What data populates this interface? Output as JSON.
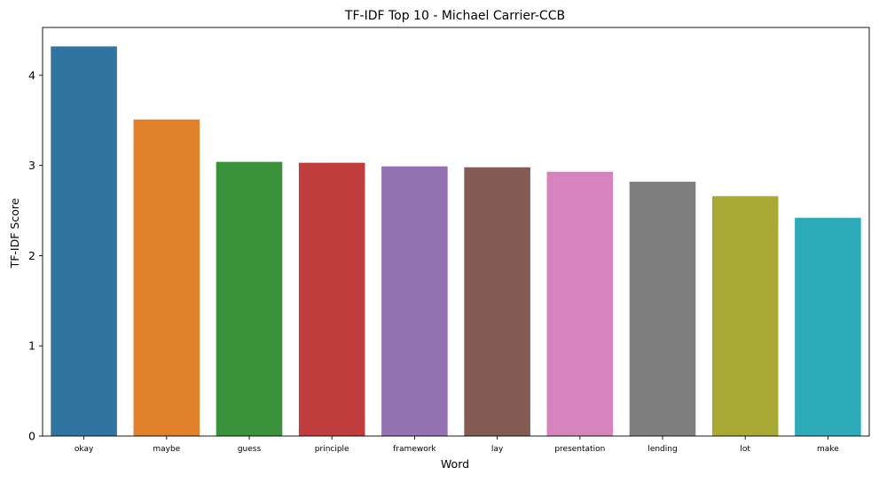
{
  "chart_data": {
    "type": "bar",
    "title": "TF-IDF Top 10 - Michael Carrier-CCB",
    "xlabel": "Word",
    "ylabel": "TF-IDF Score",
    "categories": [
      "okay",
      "maybe",
      "guess",
      "principle",
      "framework",
      "lay",
      "presentation",
      "lending",
      "lot",
      "make"
    ],
    "values": [
      4.32,
      3.51,
      3.04,
      3.03,
      2.99,
      2.98,
      2.93,
      2.82,
      2.66,
      2.42
    ],
    "colors": [
      "#3274a1",
      "#e1812c",
      "#3a923a",
      "#c03d3e",
      "#9372b2",
      "#845b53",
      "#d684bd",
      "#7f7f7f",
      "#a9aa35",
      "#2eabb8"
    ],
    "ylim": [
      0,
      4.53
    ],
    "yticks": [
      0,
      1,
      2,
      3,
      4
    ],
    "grid": false,
    "legend": "none"
  }
}
